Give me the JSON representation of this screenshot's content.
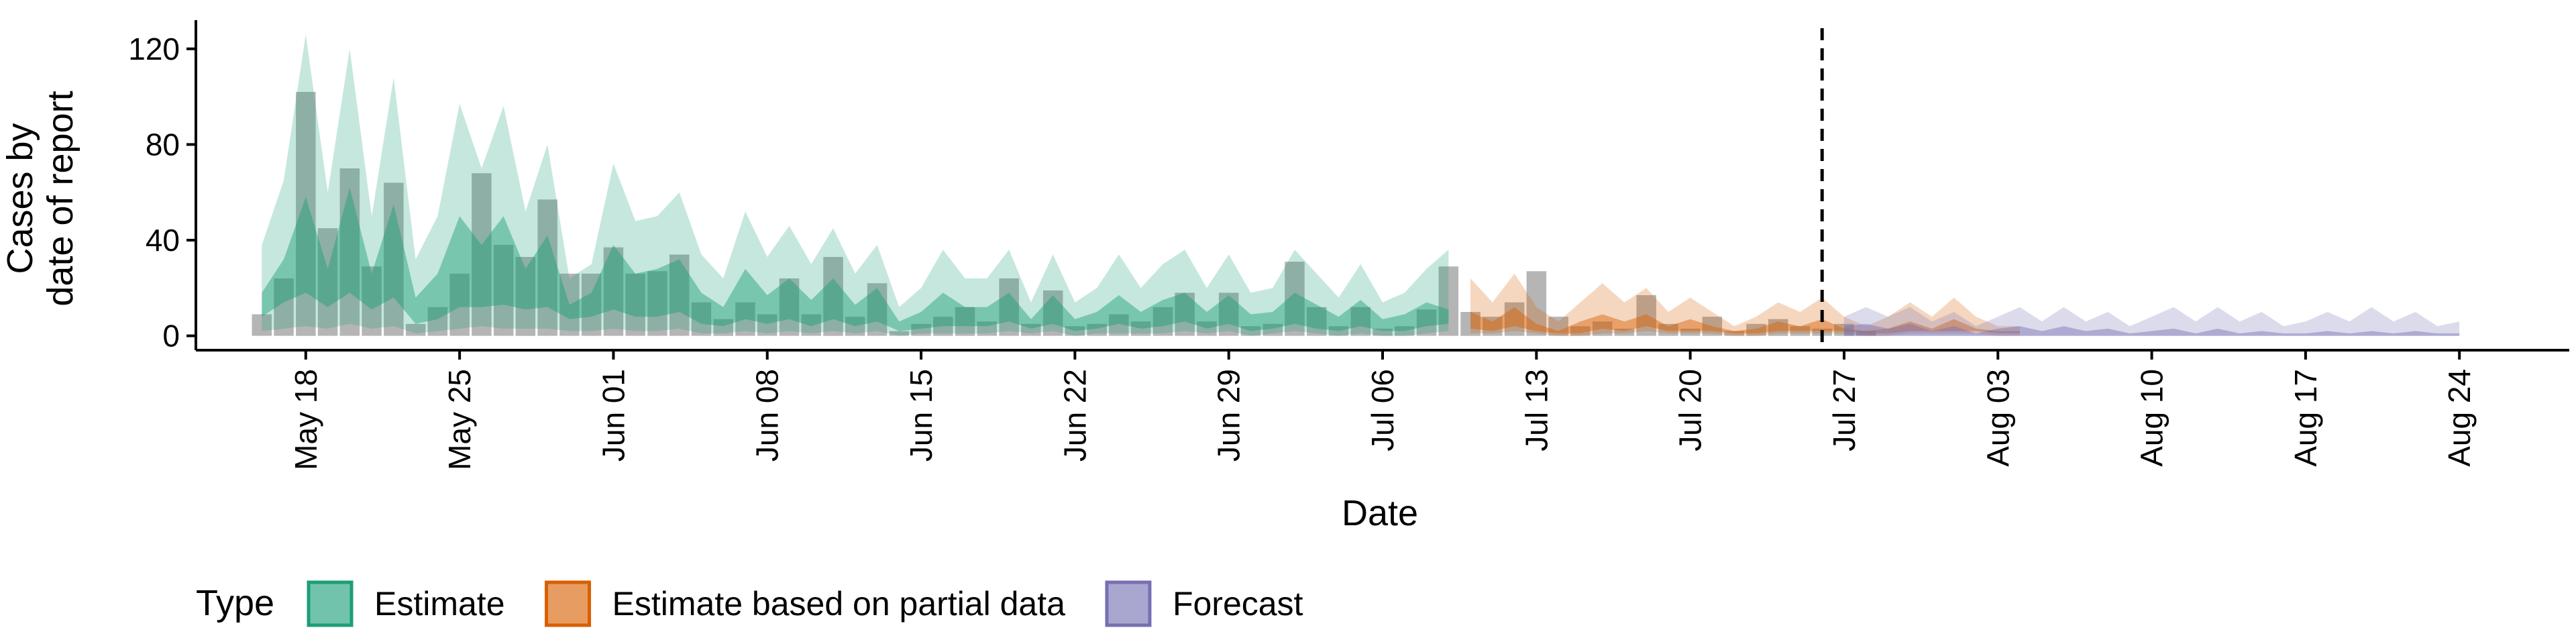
{
  "chart_data": {
    "type": "bar",
    "ylabel": "Cases by\ndate of report",
    "xlabel": "Date",
    "ylim": [
      -6,
      132
    ],
    "y_ticks": [
      0,
      40,
      80,
      120
    ],
    "x_range": [
      "2020-05-13",
      "2020-08-29"
    ],
    "x_ticks": [
      {
        "date": "2020-05-18",
        "label": "May 18"
      },
      {
        "date": "2020-05-25",
        "label": "May 25"
      },
      {
        "date": "2020-06-01",
        "label": "Jun 01"
      },
      {
        "date": "2020-06-08",
        "label": "Jun 08"
      },
      {
        "date": "2020-06-15",
        "label": "Jun 15"
      },
      {
        "date": "2020-06-22",
        "label": "Jun 22"
      },
      {
        "date": "2020-06-29",
        "label": "Jun 29"
      },
      {
        "date": "2020-07-06",
        "label": "Jul 06"
      },
      {
        "date": "2020-07-13",
        "label": "Jul 13"
      },
      {
        "date": "2020-07-20",
        "label": "Jul 20"
      },
      {
        "date": "2020-07-27",
        "label": "Jul 27"
      },
      {
        "date": "2020-08-03",
        "label": "Aug 03"
      },
      {
        "date": "2020-08-10",
        "label": "Aug 10"
      },
      {
        "date": "2020-08-17",
        "label": "Aug 17"
      },
      {
        "date": "2020-08-24",
        "label": "Aug 24"
      }
    ],
    "forecast_start": "2020-07-26",
    "grid": false,
    "legend": {
      "title": "Type",
      "position": "bottom",
      "entries": [
        {
          "label": "Estimate",
          "color": "#1b9e77"
        },
        {
          "label": "Estimate based on partial data",
          "color": "#d95f02"
        },
        {
          "label": "Forecast",
          "color": "#7570b3"
        }
      ]
    },
    "bars": {
      "start": "2020-05-16",
      "color": "#888888",
      "values": [
        9,
        24,
        102,
        45,
        70,
        29,
        64,
        5,
        12,
        26,
        68,
        38,
        33,
        57,
        26,
        26,
        37,
        26,
        27,
        34,
        14,
        7,
        14,
        9,
        24,
        9,
        33,
        8,
        22,
        2,
        5,
        8,
        12,
        6,
        24,
        5,
        19,
        4,
        5,
        9,
        6,
        12,
        18,
        6,
        18,
        4,
        5,
        31,
        12,
        4,
        12,
        3,
        4,
        11,
        29,
        10,
        8,
        14,
        27,
        8,
        4,
        6,
        3,
        17,
        5,
        3,
        8,
        2,
        5,
        7,
        4,
        3,
        5,
        2
      ]
    },
    "series": [
      {
        "name": "Estimate",
        "color": "#1b9e77",
        "start": "2020-05-16",
        "lower90": [
          2,
          3,
          4,
          3,
          5,
          3,
          4,
          1,
          2,
          3,
          4,
          3,
          3,
          3,
          2,
          2,
          3,
          2,
          2,
          3,
          1,
          1,
          2,
          1,
          2,
          1,
          2,
          1,
          2,
          0,
          1,
          1,
          1,
          1,
          2,
          1,
          2,
          0,
          1,
          1,
          1,
          1,
          2,
          1,
          2,
          0,
          1,
          2,
          1,
          0,
          1,
          0,
          0,
          1,
          2
        ],
        "upper90": [
          38,
          65,
          126,
          60,
          120,
          50,
          108,
          32,
          50,
          97,
          70,
          96,
          52,
          80,
          24,
          30,
          72,
          48,
          50,
          60,
          34,
          24,
          52,
          33,
          46,
          30,
          45,
          26,
          38,
          12,
          20,
          36,
          24,
          24,
          36,
          14,
          34,
          14,
          20,
          34,
          20,
          30,
          36,
          20,
          34,
          18,
          20,
          36,
          26,
          16,
          30,
          14,
          18,
          28,
          36
        ],
        "lower50": [
          8,
          14,
          18,
          12,
          18,
          11,
          16,
          5,
          7,
          12,
          12,
          13,
          11,
          12,
          7,
          8,
          11,
          8,
          8,
          10,
          5,
          4,
          7,
          5,
          7,
          4,
          7,
          4,
          6,
          2,
          3,
          4,
          4,
          4,
          6,
          3,
          5,
          2,
          3,
          5,
          3,
          4,
          6,
          3,
          5,
          2,
          3,
          5,
          3,
          2,
          4,
          2,
          2,
          4,
          5
        ],
        "upper50": [
          18,
          32,
          58,
          28,
          62,
          26,
          55,
          16,
          26,
          50,
          38,
          50,
          28,
          42,
          13,
          18,
          38,
          26,
          28,
          32,
          18,
          12,
          28,
          17,
          24,
          15,
          24,
          13,
          20,
          6,
          10,
          18,
          12,
          12,
          18,
          7,
          17,
          7,
          10,
          17,
          10,
          15,
          18,
          10,
          17,
          9,
          10,
          18,
          13,
          8,
          15,
          7,
          9,
          14,
          11
        ]
      },
      {
        "name": "Estimate based on partial data",
        "color": "#d95f02",
        "start": "2020-07-10",
        "lower90": [
          1,
          1,
          2,
          1,
          0,
          0,
          1,
          1,
          2,
          1,
          1,
          1,
          0,
          0,
          1,
          1,
          1,
          1,
          0,
          0,
          1,
          1,
          1,
          1,
          0,
          0
        ],
        "upper90": [
          24,
          14,
          26,
          12,
          6,
          14,
          22,
          14,
          20,
          10,
          16,
          10,
          4,
          8,
          14,
          10,
          16,
          8,
          4,
          8,
          14,
          8,
          16,
          8,
          4,
          4
        ],
        "lower50": [
          3,
          2,
          4,
          2,
          1,
          1,
          3,
          2,
          4,
          2,
          2,
          2,
          1,
          1,
          2,
          2,
          2,
          2,
          1,
          1,
          2,
          2,
          2,
          2,
          1,
          1
        ],
        "upper50": [
          10,
          6,
          12,
          5,
          2,
          6,
          9,
          6,
          9,
          4,
          7,
          4,
          2,
          3,
          6,
          4,
          7,
          3,
          2,
          3,
          6,
          3,
          7,
          3,
          2,
          2
        ]
      },
      {
        "name": "Forecast",
        "color": "#7570b3",
        "start": "2020-07-27",
        "lower90": [
          0,
          0,
          0,
          0,
          0,
          0,
          0,
          0,
          0,
          0,
          0,
          0,
          0,
          0,
          0,
          0,
          0,
          0,
          0,
          0,
          0,
          0,
          0,
          0,
          0,
          0,
          0,
          0,
          0
        ],
        "upper90": [
          8,
          12,
          8,
          12,
          6,
          10,
          4,
          8,
          12,
          6,
          12,
          6,
          10,
          4,
          8,
          12,
          6,
          12,
          6,
          10,
          4,
          6,
          10,
          6,
          12,
          6,
          10,
          4,
          6
        ],
        "lower50": [
          0,
          0,
          0,
          0,
          0,
          0,
          0,
          0,
          0,
          0,
          0,
          0,
          0,
          0,
          0,
          0,
          0,
          0,
          0,
          0,
          0,
          0,
          0,
          0,
          0,
          0,
          0,
          0,
          0
        ],
        "upper50": [
          4,
          5,
          3,
          5,
          2,
          4,
          1,
          3,
          4,
          2,
          4,
          2,
          3,
          1,
          2,
          3,
          1,
          3,
          1,
          2,
          1,
          1,
          2,
          1,
          2,
          1,
          2,
          1,
          1
        ]
      }
    ]
  }
}
